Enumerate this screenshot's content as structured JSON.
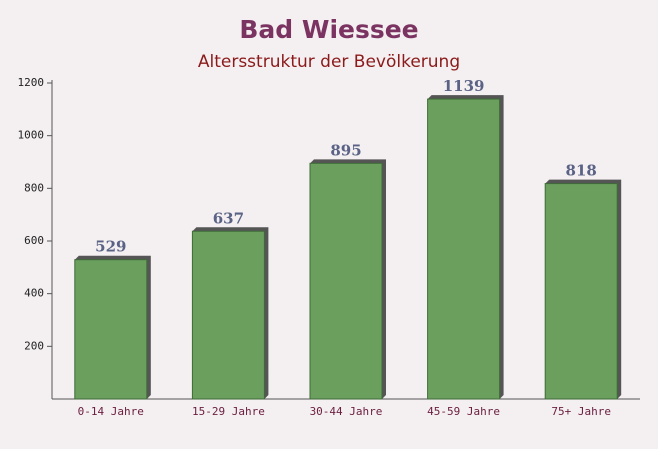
{
  "chart_data": {
    "type": "bar",
    "title": "Bad Wiessee",
    "subtitle": "Altersstruktur der Bevölkerung",
    "categories": [
      "0-14 Jahre",
      "15-29 Jahre",
      "30-44 Jahre",
      "45-59 Jahre",
      "75+ Jahre"
    ],
    "values": [
      529,
      637,
      895,
      1139,
      818
    ],
    "color": "#6a9f5e",
    "ylim": [
      0,
      1200
    ],
    "yticks": [
      200,
      400,
      600,
      800,
      1000,
      1200
    ]
  }
}
